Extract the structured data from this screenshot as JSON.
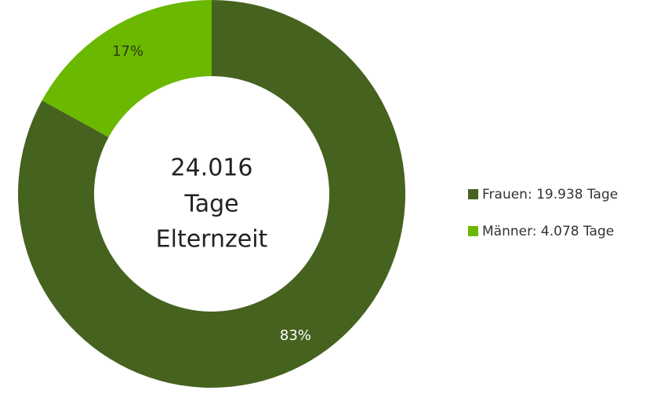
{
  "chart_data": {
    "type": "donut",
    "center_label": [
      "24.016",
      "Tage",
      "Elternzeit"
    ],
    "categories": [
      "Frauen: 19.938 Tage",
      "Männer: 4.078 Tage"
    ],
    "values": [
      83,
      17
    ],
    "value_labels": [
      "83%",
      "17%"
    ],
    "colors": [
      "#46621f",
      "#6ab800"
    ],
    "legend": "right"
  }
}
